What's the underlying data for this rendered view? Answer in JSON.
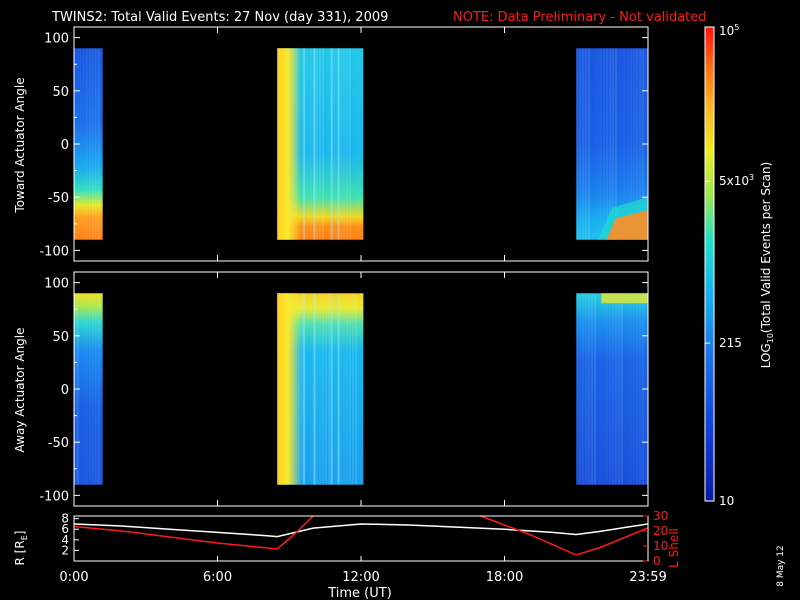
{
  "title_main": "TWINS2: Total Valid Events: 27 Nov (day 331), 2009",
  "title_note": "NOTE: Data Preliminary - Not validated",
  "credit": "8 May 12",
  "colors": {
    "background": "#000000",
    "axis": "#ffffff",
    "note": "#ff1a1a",
    "r_line": "#ffffff",
    "lshell_line": "#ff1a1a"
  },
  "chart_data": [
    {
      "type": "heatmap",
      "panel": "top",
      "ylabel": "Toward Actuator Angle",
      "ylim": [
        -110,
        110
      ],
      "yticks": [
        "100",
        "50",
        "0",
        "-50",
        "-100"
      ],
      "data_yrange": [
        -90,
        90
      ],
      "segments": [
        {
          "start_h": 0.0,
          "end_h": 1.2,
          "profile": "toward_low"
        },
        {
          "start_h": 8.5,
          "end_h": 12.1,
          "profile": "toward_high"
        },
        {
          "start_h": 21.0,
          "end_h": 24.0,
          "profile": "toward_mixed"
        }
      ]
    },
    {
      "type": "heatmap",
      "panel": "middle",
      "ylabel": "Away Actuator Angle",
      "ylim": [
        -110,
        110
      ],
      "yticks": [
        "100",
        "50",
        "0",
        "-50",
        "-100"
      ],
      "data_yrange": [
        -90,
        90
      ],
      "segments": [
        {
          "start_h": 0.0,
          "end_h": 1.2,
          "profile": "away_low"
        },
        {
          "start_h": 8.5,
          "end_h": 12.1,
          "profile": "away_high"
        },
        {
          "start_h": 21.0,
          "end_h": 24.0,
          "profile": "away_mixed"
        }
      ]
    },
    {
      "type": "line",
      "panel": "bottom",
      "ylabel_left": "R [R",
      "ylabel_left_sub": "E",
      "ylabel_right": "L Shell",
      "yticks_left": [
        "8",
        "6",
        "4",
        "2"
      ],
      "yticks_right": [
        "30",
        "20",
        "10",
        "0"
      ],
      "ylim_left": [
        0,
        8.5
      ],
      "ylim_right": [
        0,
        30
      ],
      "xlabel": "Time (UT)",
      "xticks": [
        "0:00",
        "6:00",
        "12:00",
        "18:00",
        "23:59"
      ],
      "xlim": [
        0,
        24
      ],
      "series": [
        {
          "name": "R",
          "axis": "left",
          "x": [
            0,
            2,
            4,
            6,
            8,
            8.5,
            10,
            12,
            14,
            16,
            18,
            20,
            21,
            22,
            24
          ],
          "y": [
            7.0,
            6.6,
            6.0,
            5.4,
            4.8,
            4.6,
            6.2,
            7.0,
            6.8,
            6.4,
            6.0,
            5.4,
            5.0,
            5.6,
            7.0
          ]
        },
        {
          "name": "L Shell",
          "axis": "right",
          "segments": [
            {
              "x": [
                0,
                2,
                4,
                6,
                8.5
              ],
              "y": [
                23,
                20,
                16,
                12,
                8
              ]
            },
            {
              "x": [
                8.5,
                9.3,
                10.0
              ],
              "y": [
                8,
                19,
                30
              ]
            },
            {
              "x": [
                17.0,
                19.0,
                21.0,
                22.0,
                23.99
              ],
              "y": [
                30,
                18,
                4,
                9,
                22
              ]
            }
          ]
        }
      ]
    },
    {
      "type": "colorbar",
      "label_main": "LOG",
      "label_sub": "10",
      "label_rest": "(Total Valid Events per Scan)",
      "vlim": [
        10,
        100000
      ],
      "scale": "log",
      "ticks": [
        {
          "value": 100000,
          "label": "10",
          "sup": "5"
        },
        {
          "value": 5000,
          "label": "5x10",
          "sup": "3"
        },
        {
          "value": 215,
          "label": "215",
          "sup": ""
        },
        {
          "value": 10,
          "label": "10",
          "sup": ""
        }
      ]
    }
  ]
}
